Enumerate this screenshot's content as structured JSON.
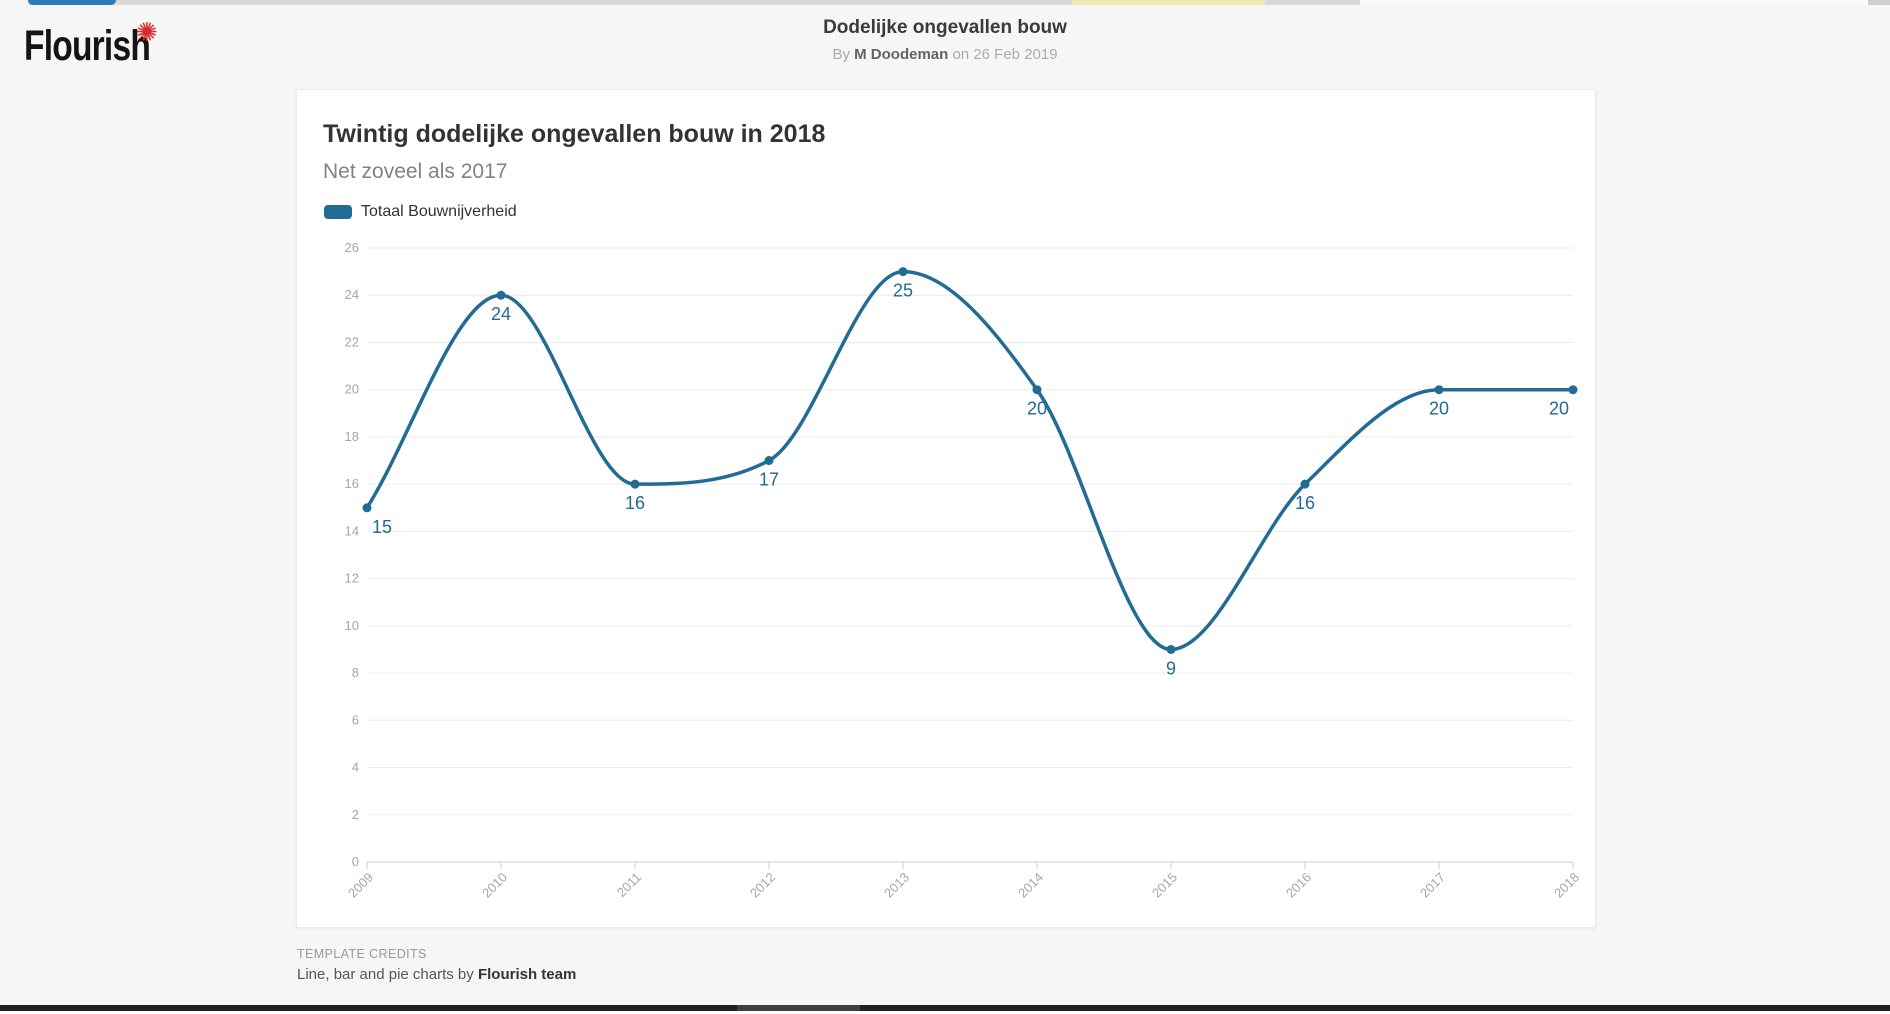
{
  "header": {
    "logo_text": "Flourish",
    "logo_star_glyph": "✺",
    "title": "Dodelijke ongevallen bouw",
    "byline_prefix": "By",
    "author": "M Doodeman",
    "byline_suffix": "on 26 Feb 2019"
  },
  "card": {
    "title": "Twintig dodelijke ongevallen bouw in 2018",
    "subtitle": "Net zoveel als 2017",
    "legend_label": "Totaal Bouwnijverheid"
  },
  "chart_data": {
    "type": "line",
    "title": "Twintig dodelijke ongevallen bouw in 2018",
    "subtitle": "Net zoveel als 2017",
    "categories": [
      "2009",
      "2010",
      "2011",
      "2012",
      "2013",
      "2014",
      "2015",
      "2016",
      "2017",
      "2018"
    ],
    "series": [
      {
        "name": "Totaal Bouwnijverheid",
        "values": [
          15,
          24,
          16,
          17,
          25,
          20,
          9,
          16,
          20,
          20
        ]
      }
    ],
    "ylim": [
      0,
      26
    ],
    "ytick_step": 2,
    "xlabel": "",
    "ylabel": "",
    "grid": "horizontal",
    "legend_position": "top-left",
    "curve": "smooth",
    "show_point_labels": true,
    "x_tick_rotation": -45
  },
  "footer": {
    "credits_heading": "TEMPLATE CREDITS",
    "credits_text": "Line, bar and pie charts by",
    "credits_bold": "Flourish team"
  },
  "colors": {
    "accent": "#226b94",
    "point_label": "#226b94",
    "grid": "#ececec",
    "axis_line": "#cccccc",
    "axis_text": "#a6a6a6"
  }
}
